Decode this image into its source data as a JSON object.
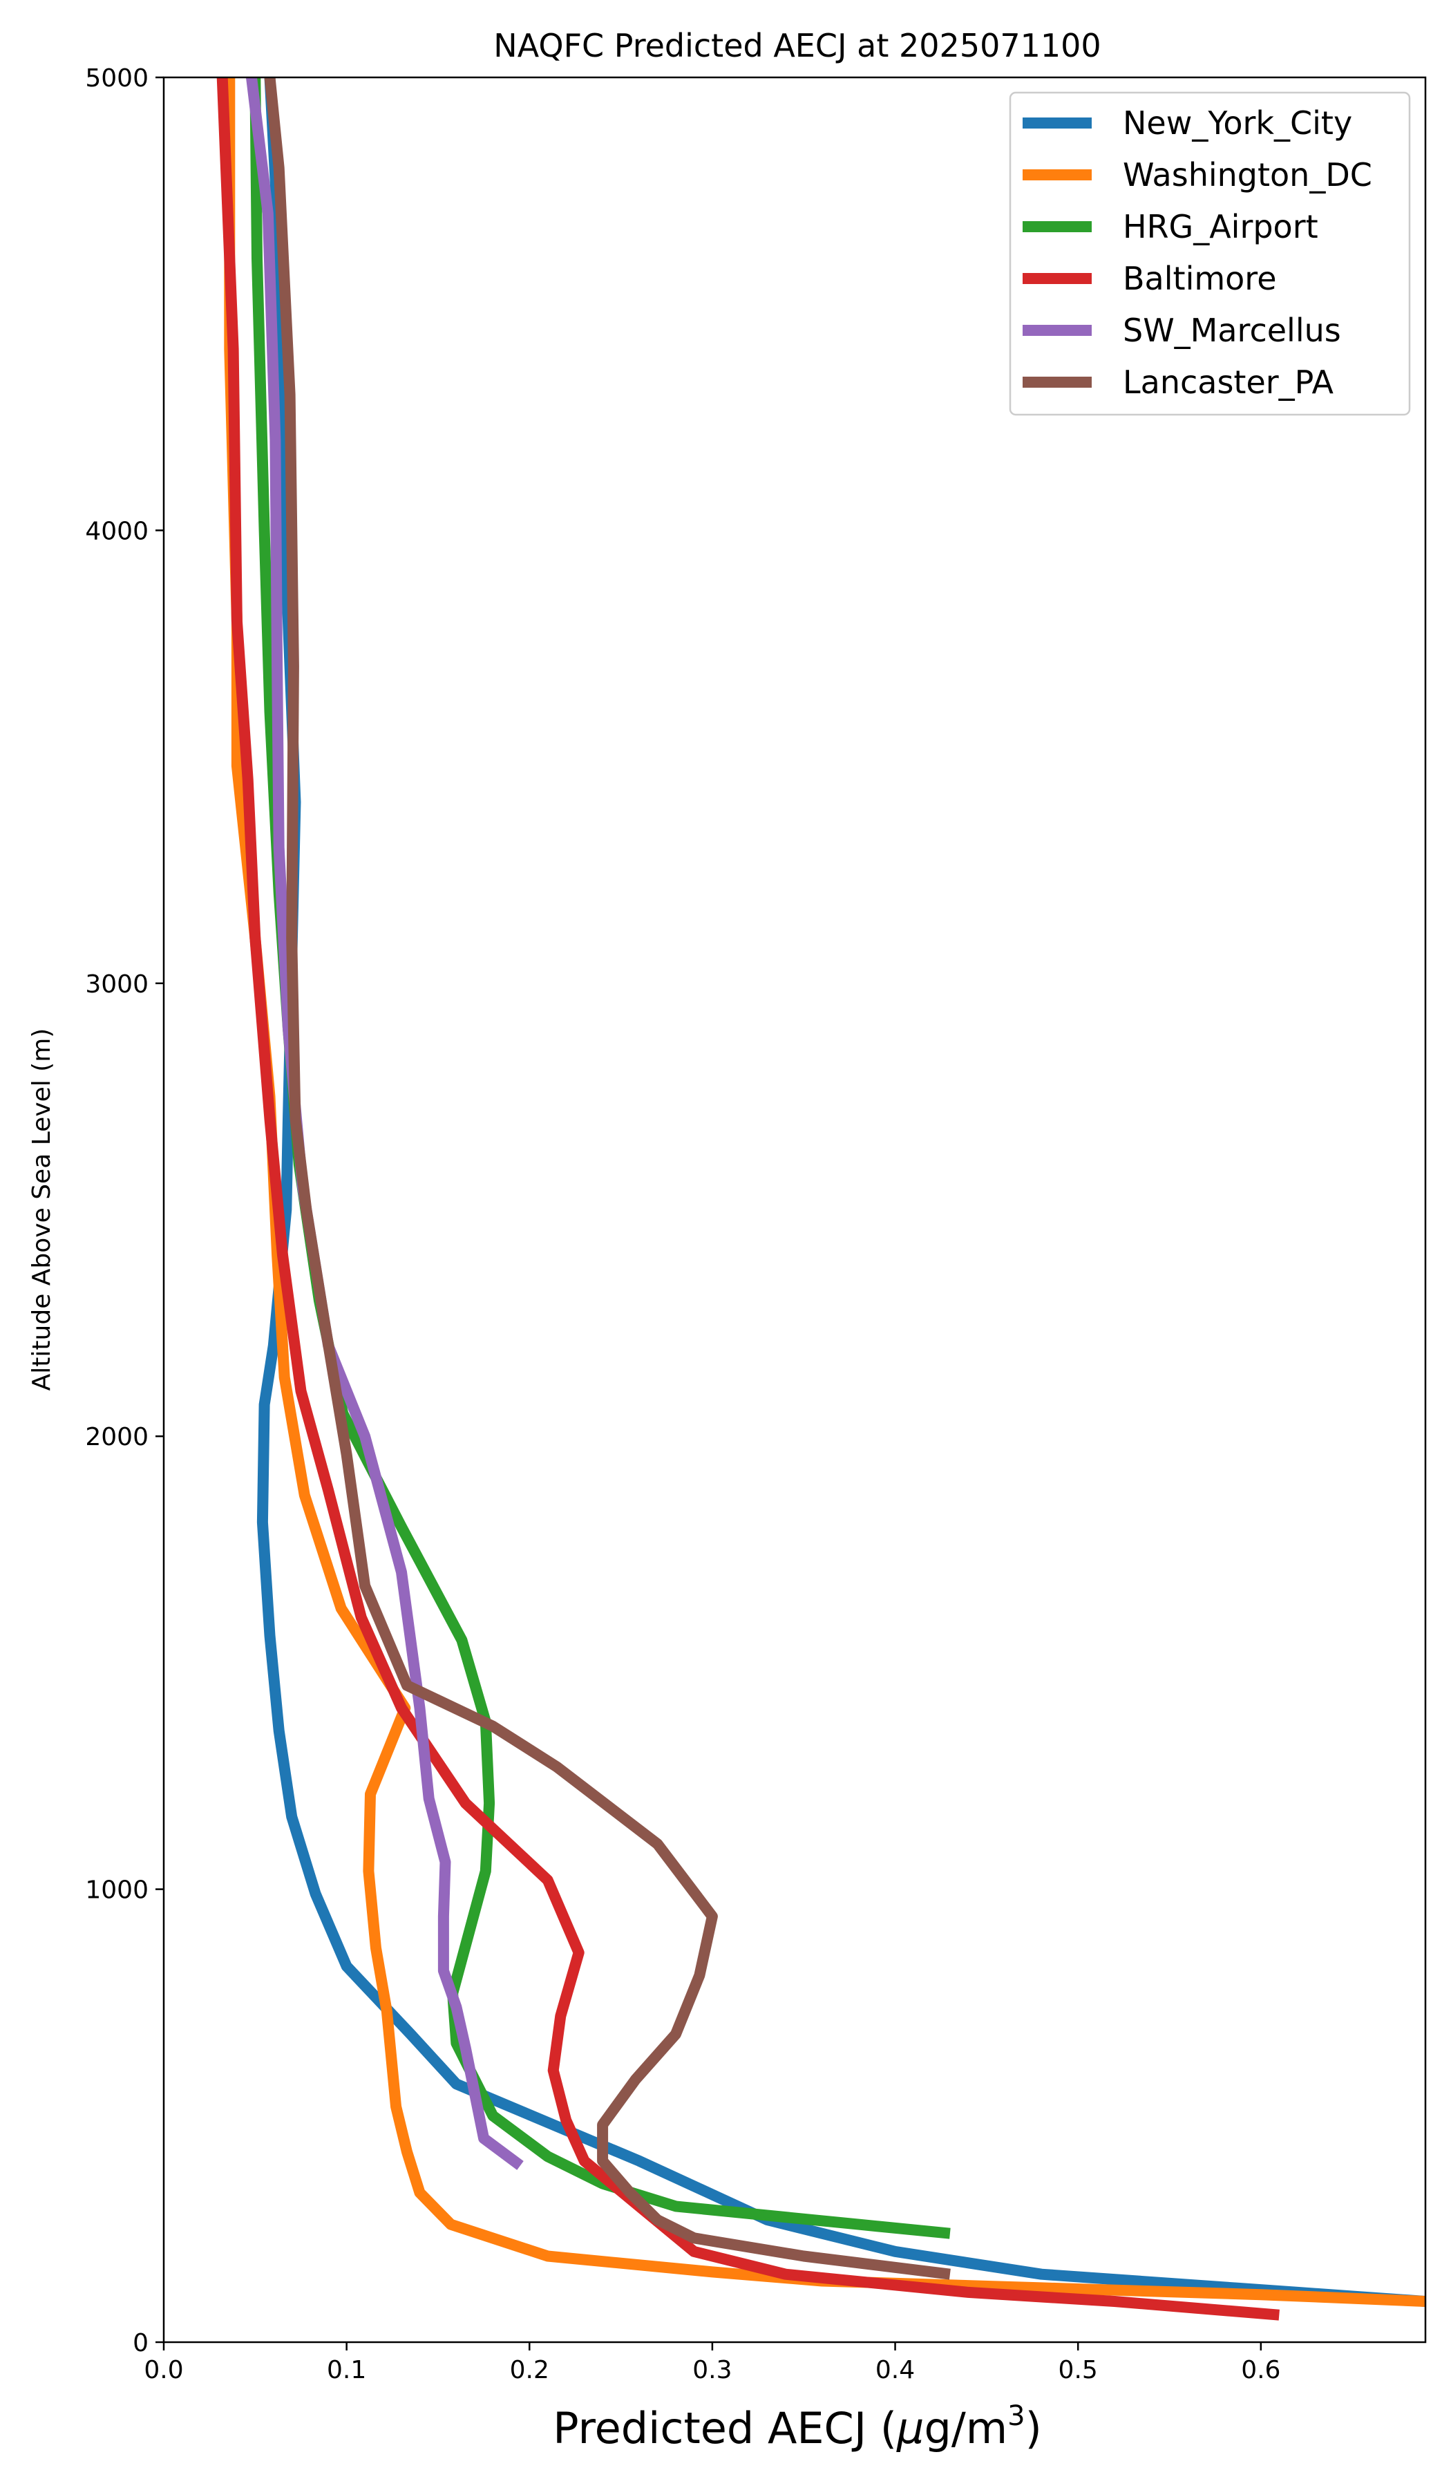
{
  "chart_data": {
    "type": "line",
    "title": "NAQFC Predicted AECJ at 2025071100",
    "xlabel_prefix": "Predicted AECJ (",
    "xlabel_mu": "μ",
    "xlabel_unit": "g/m",
    "xlabel_exp": "3",
    "xlabel_suffix": ")",
    "ylabel": "Altitude Above Sea Level (m)",
    "xlim": [
      0.0,
      0.69
    ],
    "ylim": [
      0,
      5000
    ],
    "xticks": [
      0.0,
      0.1,
      0.2,
      0.3,
      0.4,
      0.5,
      0.6
    ],
    "xtick_labels": [
      "0.0",
      "0.1",
      "0.2",
      "0.3",
      "0.4",
      "0.5",
      "0.6"
    ],
    "yticks": [
      0,
      1000,
      2000,
      3000,
      4000,
      5000
    ],
    "ytick_labels": [
      "0",
      "1000",
      "2000",
      "3000",
      "4000",
      "5000"
    ],
    "grid": false,
    "legend_position": "top-right",
    "series": [
      {
        "name": "New_York_City",
        "color": "#1f77b4",
        "points": [
          [
            0.69,
            90
          ],
          [
            0.62,
            110
          ],
          [
            0.48,
            150
          ],
          [
            0.4,
            200
          ],
          [
            0.33,
            270
          ],
          [
            0.26,
            400
          ],
          [
            0.16,
            570
          ],
          [
            0.135,
            680
          ],
          [
            0.1,
            830
          ],
          [
            0.083,
            990
          ],
          [
            0.07,
            1160
          ],
          [
            0.063,
            1350
          ],
          [
            0.058,
            1560
          ],
          [
            0.054,
            1810
          ],
          [
            0.055,
            2070
          ],
          [
            0.06,
            2200
          ],
          [
            0.067,
            2500
          ],
          [
            0.068,
            2700
          ],
          [
            0.07,
            3050
          ],
          [
            0.072,
            3400
          ],
          [
            0.066,
            4000
          ],
          [
            0.062,
            4700
          ],
          [
            0.058,
            5000
          ]
        ]
      },
      {
        "name": "Washington_DC",
        "color": "#ff7f0e",
        "points": [
          [
            0.69,
            90
          ],
          [
            0.6,
            105
          ],
          [
            0.48,
            120
          ],
          [
            0.36,
            135
          ],
          [
            0.3,
            155
          ],
          [
            0.21,
            190
          ],
          [
            0.157,
            260
          ],
          [
            0.14,
            330
          ],
          [
            0.133,
            420
          ],
          [
            0.127,
            520
          ],
          [
            0.122,
            730
          ],
          [
            0.116,
            870
          ],
          [
            0.112,
            1040
          ],
          [
            0.113,
            1210
          ],
          [
            0.132,
            1400
          ],
          [
            0.097,
            1620
          ],
          [
            0.077,
            1870
          ],
          [
            0.066,
            2130
          ],
          [
            0.062,
            2400
          ],
          [
            0.058,
            2750
          ],
          [
            0.05,
            3100
          ],
          [
            0.04,
            3480
          ],
          [
            0.04,
            3800
          ],
          [
            0.036,
            4400
          ],
          [
            0.036,
            5000
          ]
        ]
      },
      {
        "name": "HRG_Airport",
        "color": "#2ca02c",
        "points": [
          [
            0.43,
            240
          ],
          [
            0.38,
            260
          ],
          [
            0.33,
            280
          ],
          [
            0.28,
            300
          ],
          [
            0.24,
            350
          ],
          [
            0.21,
            410
          ],
          [
            0.18,
            500
          ],
          [
            0.16,
            660
          ],
          [
            0.158,
            770
          ],
          [
            0.176,
            1040
          ],
          [
            0.178,
            1190
          ],
          [
            0.176,
            1370
          ],
          [
            0.163,
            1550
          ],
          [
            0.13,
            1800
          ],
          [
            0.098,
            2050
          ],
          [
            0.085,
            2300
          ],
          [
            0.074,
            2600
          ],
          [
            0.068,
            2900
          ],
          [
            0.063,
            3200
          ],
          [
            0.058,
            3600
          ],
          [
            0.055,
            4000
          ],
          [
            0.051,
            4600
          ],
          [
            0.05,
            5000
          ]
        ]
      },
      {
        "name": "Baltimore",
        "color": "#d62728",
        "points": [
          [
            0.61,
            60
          ],
          [
            0.52,
            90
          ],
          [
            0.44,
            110
          ],
          [
            0.34,
            150
          ],
          [
            0.29,
            200
          ],
          [
            0.26,
            300
          ],
          [
            0.23,
            400
          ],
          [
            0.22,
            490
          ],
          [
            0.213,
            600
          ],
          [
            0.217,
            720
          ],
          [
            0.227,
            860
          ],
          [
            0.21,
            1020
          ],
          [
            0.165,
            1190
          ],
          [
            0.13,
            1400
          ],
          [
            0.108,
            1600
          ],
          [
            0.09,
            1880
          ],
          [
            0.075,
            2100
          ],
          [
            0.065,
            2400
          ],
          [
            0.058,
            2700
          ],
          [
            0.05,
            3100
          ],
          [
            0.046,
            3450
          ],
          [
            0.04,
            3800
          ],
          [
            0.038,
            4400
          ],
          [
            0.032,
            5000
          ]
        ]
      },
      {
        "name": "SW_Marcellus",
        "color": "#9467bd",
        "points": [
          [
            0.195,
            390
          ],
          [
            0.175,
            450
          ],
          [
            0.17,
            550
          ],
          [
            0.165,
            650
          ],
          [
            0.16,
            740
          ],
          [
            0.153,
            820
          ],
          [
            0.153,
            940
          ],
          [
            0.154,
            1060
          ],
          [
            0.145,
            1200
          ],
          [
            0.14,
            1400
          ],
          [
            0.13,
            1700
          ],
          [
            0.11,
            2000
          ],
          [
            0.09,
            2200
          ],
          [
            0.076,
            2550
          ],
          [
            0.068,
            2900
          ],
          [
            0.063,
            3300
          ],
          [
            0.062,
            3700
          ],
          [
            0.061,
            4200
          ],
          [
            0.057,
            4700
          ],
          [
            0.048,
            5000
          ]
        ]
      },
      {
        "name": "Lancaster_PA",
        "color": "#8c564b",
        "points": [
          [
            0.43,
            150
          ],
          [
            0.35,
            190
          ],
          [
            0.29,
            230
          ],
          [
            0.27,
            270
          ],
          [
            0.255,
            330
          ],
          [
            0.24,
            400
          ],
          [
            0.24,
            480
          ],
          [
            0.258,
            580
          ],
          [
            0.28,
            680
          ],
          [
            0.293,
            810
          ],
          [
            0.3,
            940
          ],
          [
            0.27,
            1100
          ],
          [
            0.215,
            1270
          ],
          [
            0.18,
            1360
          ],
          [
            0.133,
            1450
          ],
          [
            0.11,
            1670
          ],
          [
            0.1,
            1960
          ],
          [
            0.088,
            2250
          ],
          [
            0.078,
            2500
          ],
          [
            0.072,
            2700
          ],
          [
            0.07,
            3100
          ],
          [
            0.071,
            3700
          ],
          [
            0.069,
            4300
          ],
          [
            0.063,
            4800
          ],
          [
            0.058,
            5000
          ]
        ]
      }
    ]
  }
}
